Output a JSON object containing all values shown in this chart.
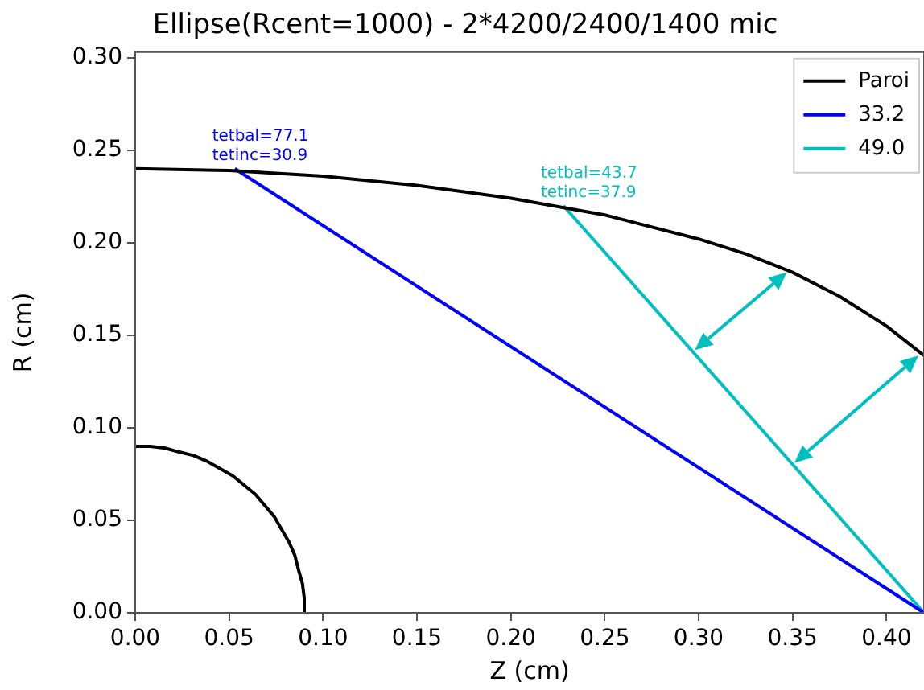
{
  "chart_data": {
    "type": "line",
    "title": "Ellipse(Rcent=1000) - 2*4200/2400/1400 mic",
    "xlabel": "Z (cm)",
    "ylabel": "R (cm)",
    "xlim": [
      0,
      0.42
    ],
    "xticks": [
      {
        "value": 0,
        "label": "0.00"
      },
      0.05,
      {
        "value": 0.1,
        "label": "0.10"
      },
      0.15,
      {
        "value": 0.2,
        "label": "0.20"
      },
      0.25,
      {
        "value": 0.3,
        "label": "0.30"
      },
      0.35,
      {
        "value": 0.4,
        "label": "0.40"
      }
    ],
    "ylim": [
      0,
      0.303
    ],
    "yticks": [
      {
        "value": 0,
        "label": "0.00"
      },
      0.05,
      {
        "value": 0.1,
        "label": "0.10"
      },
      0.15,
      {
        "value": 0.2,
        "label": "0.20"
      },
      0.25,
      {
        "value": 0.3,
        "label": "0.30"
      }
    ],
    "grid": false,
    "legend": "top right",
    "marker": "none",
    "line_style": "solid",
    "series": [
      {
        "name": "Paroi",
        "color": "#000000",
        "x": [
          0,
          0.05,
          0.1,
          0.15,
          0.2,
          0.25,
          0.3,
          0.325,
          0.35,
          0.375,
          0.4,
          0.42
        ],
        "values": [
          0.24,
          0.239,
          0.236,
          0.231,
          0.224,
          0.215,
          0.202,
          0.194,
          0.184,
          0.171,
          0.155,
          0.139
        ]
      },
      {
        "color": "#000000",
        "x": [
          0,
          0.008,
          0.016,
          0.023,
          0.031,
          0.038,
          0.045,
          0.052,
          0.058,
          0.064,
          0.069,
          0.074,
          0.078,
          0.082,
          0.085,
          0.087,
          0.089,
          0.09,
          0.09
        ],
        "values": [
          0.09,
          0.09,
          0.089,
          0.087,
          0.085,
          0.082,
          0.078,
          0.074,
          0.069,
          0.064,
          0.058,
          0.052,
          0.045,
          0.038,
          0.031,
          0.023,
          0.016,
          0.008,
          0
        ]
      },
      {
        "name": "33.2",
        "color": "#0000ff",
        "x": [
          0.053,
          0.42
        ],
        "values": [
          0.24,
          0
        ]
      },
      {
        "name": "49.0",
        "color": "#00bfbf",
        "x": [
          0.228,
          0.42
        ],
        "values": [
          0.22,
          0
        ]
      }
    ],
    "annotations": [
      {
        "text": "tetbal=77.1\ntetinc=30.9",
        "x": 0.053,
        "y": 0.24
      },
      {
        "text": "tetbal=43.7\ntetinc=37.9",
        "x": 0.228,
        "y": 0.22
      }
    ]
  }
}
